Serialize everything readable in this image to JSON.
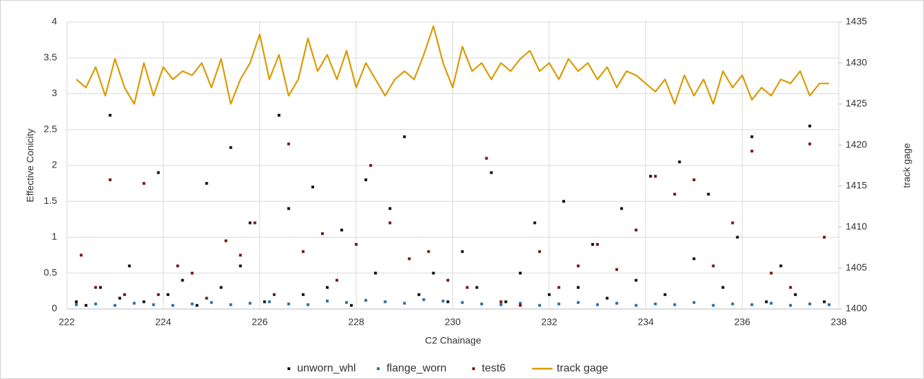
{
  "chart_data": {
    "type": "scatter",
    "xlabel": "C2 Chainage",
    "ylabel": "Effective Conicity",
    "y2label": "track gage",
    "xlim": [
      222,
      238
    ],
    "xticks": [
      222,
      224,
      226,
      228,
      230,
      232,
      234,
      236,
      238
    ],
    "ylim": [
      0,
      4
    ],
    "yticks": [
      0,
      0.5,
      1,
      1.5,
      2,
      2.5,
      3,
      3.5,
      4
    ],
    "y2lim": [
      1400,
      1435
    ],
    "y2ticks": [
      1400,
      1405,
      1410,
      1415,
      1420,
      1425,
      1430,
      1435
    ],
    "grid": true,
    "legend": "bottom",
    "series": [
      {
        "name": "unworn_whl",
        "color": "#111111",
        "type": "scatter",
        "x": [
          222.2,
          222.4,
          222.7,
          222.9,
          223.1,
          223.3,
          223.6,
          223.9,
          224.1,
          224.4,
          224.7,
          224.9,
          225.2,
          225.4,
          225.6,
          225.8,
          226.1,
          226.4,
          226.6,
          226.9,
          227.1,
          227.4,
          227.7,
          227.9,
          228.2,
          228.4,
          228.7,
          229.0,
          229.3,
          229.6,
          229.9,
          230.2,
          230.5,
          230.8,
          231.1,
          231.4,
          231.7,
          232.0,
          232.3,
          232.6,
          232.9,
          233.2,
          233.5,
          233.8,
          234.1,
          234.4,
          234.7,
          235.0,
          235.3,
          235.6,
          235.9,
          236.2,
          236.5,
          236.8,
          237.1,
          237.4,
          237.7
        ],
        "values": [
          0.1,
          0.05,
          0.3,
          2.7,
          0.15,
          0.6,
          0.1,
          1.9,
          0.2,
          0.4,
          0.05,
          1.75,
          0.3,
          2.25,
          0.6,
          1.2,
          0.1,
          2.7,
          1.4,
          0.2,
          1.7,
          0.3,
          1.1,
          0.05,
          1.8,
          0.5,
          1.4,
          2.4,
          0.2,
          0.5,
          0.1,
          0.8,
          0.3,
          1.9,
          0.1,
          0.5,
          1.2,
          0.2,
          1.5,
          0.3,
          0.9,
          0.15,
          1.4,
          0.4,
          1.85,
          0.2,
          2.05,
          0.7,
          1.6,
          0.3,
          1.0,
          2.4,
          0.1,
          0.6,
          0.2,
          2.55,
          0.1
        ]
      },
      {
        "name": "flange_worn",
        "color": "#2e6ca4",
        "type": "scatter",
        "x": [
          222.2,
          222.6,
          223.0,
          223.4,
          223.8,
          224.2,
          224.6,
          225.0,
          225.4,
          225.8,
          226.2,
          226.6,
          227.0,
          227.4,
          227.8,
          228.2,
          228.6,
          229.0,
          229.4,
          229.8,
          230.2,
          230.6,
          231.0,
          231.4,
          231.8,
          232.2,
          232.6,
          233.0,
          233.4,
          233.8,
          234.2,
          234.6,
          235.0,
          235.4,
          235.8,
          236.2,
          236.6,
          237.0,
          237.4,
          237.8
        ],
        "values": [
          0.06,
          0.07,
          0.05,
          0.08,
          0.06,
          0.05,
          0.07,
          0.09,
          0.06,
          0.08,
          0.1,
          0.07,
          0.06,
          0.11,
          0.09,
          0.12,
          0.1,
          0.08,
          0.13,
          0.11,
          0.09,
          0.07,
          0.06,
          0.08,
          0.05,
          0.07,
          0.09,
          0.06,
          0.08,
          0.05,
          0.07,
          0.06,
          0.09,
          0.05,
          0.07,
          0.06,
          0.08,
          0.05,
          0.07,
          0.06
        ]
      },
      {
        "name": "test6",
        "color": "#7a1414",
        "type": "scatter",
        "x": [
          222.3,
          222.6,
          222.9,
          223.2,
          223.6,
          223.9,
          224.3,
          224.6,
          224.9,
          225.3,
          225.6,
          225.9,
          226.3,
          226.6,
          226.9,
          227.3,
          227.6,
          228.0,
          228.3,
          228.7,
          229.1,
          229.5,
          229.9,
          230.3,
          230.7,
          231.0,
          231.4,
          231.8,
          232.2,
          232.6,
          233.0,
          233.4,
          233.8,
          234.2,
          234.6,
          235.0,
          235.4,
          235.8,
          236.2,
          236.6,
          237.0,
          237.4,
          237.7
        ],
        "values": [
          0.75,
          0.3,
          1.8,
          0.2,
          1.75,
          0.2,
          0.6,
          0.5,
          0.15,
          0.95,
          0.75,
          1.2,
          0.2,
          2.3,
          0.8,
          1.05,
          0.4,
          0.9,
          2.0,
          1.2,
          0.7,
          0.8,
          0.4,
          0.3,
          2.1,
          0.1,
          0.05,
          0.8,
          0.3,
          0.6,
          0.9,
          0.55,
          1.1,
          1.85,
          1.6,
          1.8,
          0.6,
          1.2,
          2.2,
          0.5,
          0.3,
          2.3,
          1.0
        ]
      },
      {
        "name": "track gage",
        "color": "#d99a00",
        "type": "line",
        "axis": "y2",
        "x": [
          222.2,
          222.4,
          222.6,
          222.8,
          223.0,
          223.2,
          223.4,
          223.6,
          223.8,
          224.0,
          224.2,
          224.4,
          224.6,
          224.8,
          225.0,
          225.2,
          225.4,
          225.6,
          225.8,
          226.0,
          226.2,
          226.4,
          226.6,
          226.8,
          227.0,
          227.2,
          227.4,
          227.6,
          227.8,
          228.0,
          228.2,
          228.4,
          228.6,
          228.8,
          229.0,
          229.2,
          229.4,
          229.6,
          229.8,
          230.0,
          230.2,
          230.4,
          230.6,
          230.8,
          231.0,
          231.2,
          231.4,
          231.6,
          231.8,
          232.0,
          232.2,
          232.4,
          232.6,
          232.8,
          233.0,
          233.2,
          233.4,
          233.6,
          233.8,
          234.0,
          234.2,
          234.4,
          234.6,
          234.8,
          235.0,
          235.2,
          235.4,
          235.6,
          235.8,
          236.0,
          236.2,
          236.4,
          236.6,
          236.8,
          237.0,
          237.2,
          237.4,
          237.6,
          237.8
        ],
        "values": [
          1428,
          1427,
          1429.5,
          1426,
          1430.5,
          1427,
          1425,
          1430,
          1426,
          1429.5,
          1428,
          1429,
          1428.5,
          1430,
          1427,
          1430.5,
          1425,
          1428,
          1430,
          1433.5,
          1428,
          1431,
          1426,
          1428,
          1433,
          1429,
          1431,
          1428,
          1431.5,
          1427,
          1430,
          1428,
          1426,
          1428,
          1429,
          1428,
          1431,
          1434.5,
          1430,
          1427,
          1432,
          1429,
          1430,
          1428,
          1430,
          1429,
          1430.5,
          1431.5,
          1429,
          1430,
          1428,
          1430.5,
          1429,
          1430,
          1428,
          1429.5,
          1427,
          1429,
          1428.5,
          1427.5,
          1426.5,
          1428,
          1425,
          1428.5,
          1426,
          1428,
          1425,
          1429,
          1427,
          1428.5,
          1425.5,
          1427,
          1426,
          1428,
          1427.5,
          1429,
          1426,
          1427.5,
          1427.5
        ]
      }
    ]
  }
}
